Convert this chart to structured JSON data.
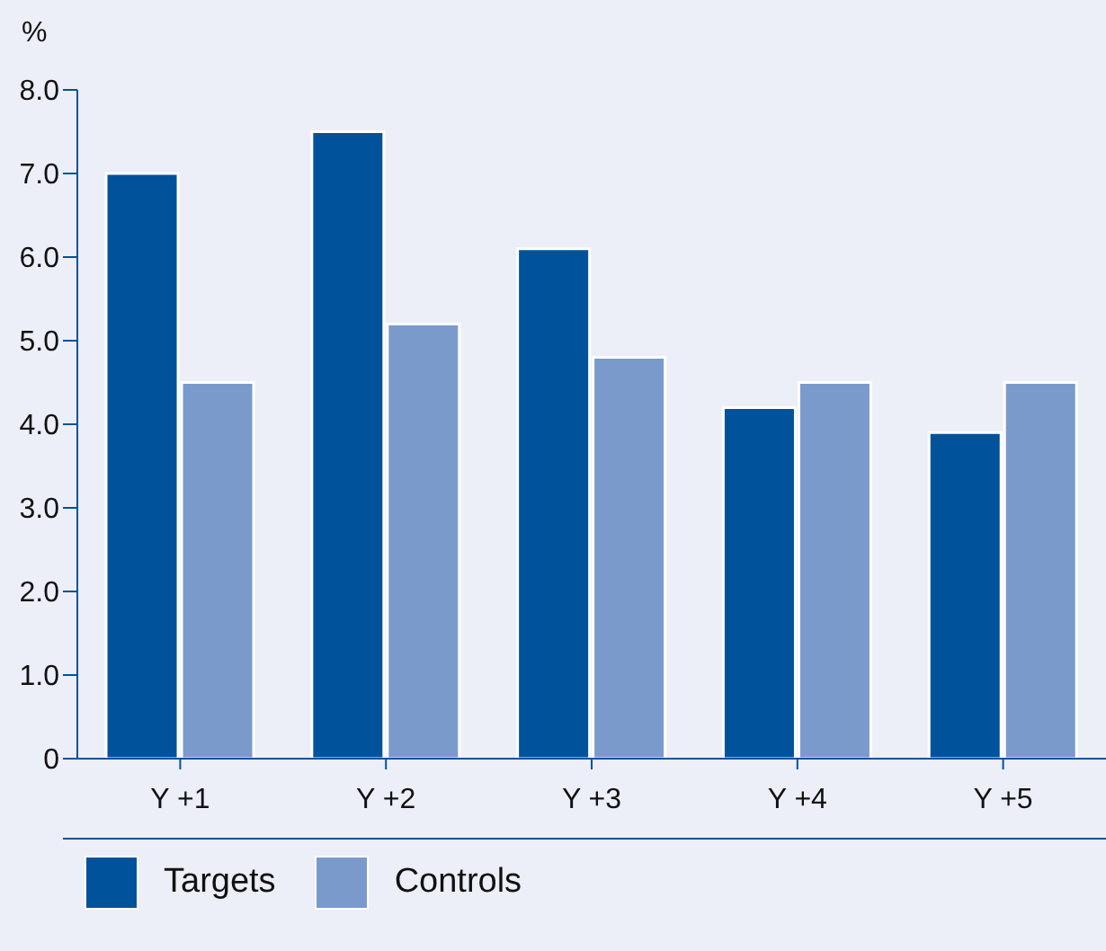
{
  "chart_data": {
    "type": "bar",
    "ylabel": "%",
    "categories": [
      "Y +1",
      "Y +2",
      "Y +3",
      "Y +4",
      "Y +5"
    ],
    "series": [
      {
        "name": "Targets",
        "color": "#00529b",
        "values": [
          7.0,
          7.5,
          6.1,
          4.2,
          3.9
        ]
      },
      {
        "name": "Controls",
        "color": "#7b9acc",
        "values": [
          4.5,
          5.2,
          4.8,
          4.5,
          4.5
        ]
      }
    ],
    "ylim": [
      0,
      8
    ],
    "yticks": [
      {
        "value": 0,
        "label": "0"
      },
      {
        "value": 1,
        "label": "1.0"
      },
      {
        "value": 2,
        "label": "2.0"
      },
      {
        "value": 3,
        "label": "3.0"
      },
      {
        "value": 4,
        "label": "4.0"
      },
      {
        "value": 5,
        "label": "5.0"
      },
      {
        "value": 6,
        "label": "6.0"
      },
      {
        "value": 7,
        "label": "7.0"
      },
      {
        "value": 8,
        "label": "8.0"
      }
    ],
    "grid": false,
    "legend": "bottom"
  }
}
